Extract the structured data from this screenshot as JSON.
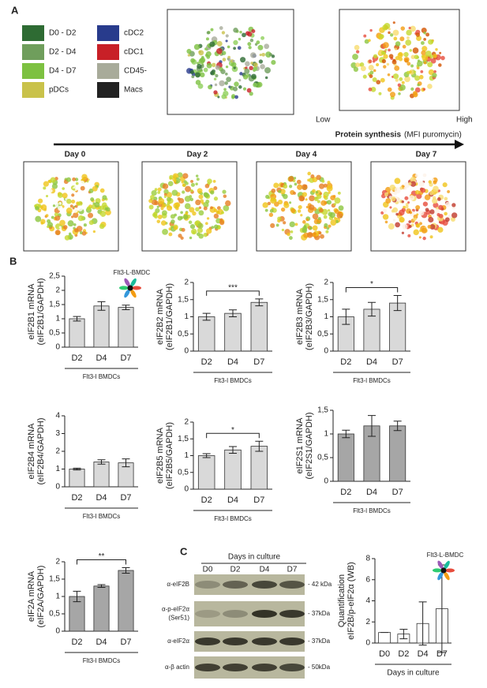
{
  "panel_a": {
    "letter": "A",
    "legend": [
      {
        "label": "D0 - D2",
        "color": "#2e6b33"
      },
      {
        "label": "D2 - D4",
        "color": "#6f9e5c"
      },
      {
        "label": "D4 - D7",
        "color": "#7dc141"
      },
      {
        "label": "pDCs",
        "color": "#c9c24a"
      },
      {
        "label": "cDC2",
        "color": "#283b8c"
      },
      {
        "label": "cDC1",
        "color": "#c82027"
      },
      {
        "label": "CD45-",
        "color": "#a8ab9a"
      },
      {
        "label": "Macs",
        "color": "#222222"
      }
    ],
    "scale_low": "Low",
    "scale_high": "High",
    "scale_title": "Protein synthesis",
    "scale_unit": "(MFI puromycin)",
    "days": [
      "Day 0",
      "Day 2",
      "Day 4",
      "Day 7"
    ]
  },
  "panel_b": {
    "letter": "B"
  },
  "panel_c": {
    "letter": "C",
    "header": "Days in culture",
    "lanes": [
      "D0",
      "D2",
      "D4",
      "D7"
    ],
    "rows": [
      {
        "antibody": [
          "α-eIF2B"
        ],
        "size": "- 42 kDa"
      },
      {
        "antibody": [
          "α-p-eIF2α",
          "(Ser51)"
        ],
        "size": "- 37kDa"
      },
      {
        "antibody": [
          "α-eIF2α"
        ],
        "size": "- 37kDa"
      },
      {
        "antibody": [
          "α-β actin"
        ],
        "size": "- 50kDa"
      }
    ]
  },
  "chart_data": [
    {
      "type": "bar",
      "ylabel": [
        "eIF2B1 mRNA",
        "(eIF2B1/GAPDH)"
      ],
      "xlabel": "Flt3-l BMDCs",
      "annotation": "Flt3-L-BMDC",
      "categories": [
        "D2",
        "D4",
        "D7"
      ],
      "values": [
        1,
        1.45,
        1.4
      ],
      "errors": [
        0.08,
        0.15,
        0.08
      ],
      "color": "#d9d9d9",
      "ylim": [
        0,
        2.5
      ],
      "yticks": [
        0,
        {
          "value": 0.5,
          "label": "0,5"
        },
        1,
        {
          "value": 1.5,
          "label": "1,5"
        },
        2,
        {
          "value": 2.5,
          "label": "2,5"
        }
      ]
    },
    {
      "type": "bar",
      "ylabel": [
        "eIF2B2 mRNA",
        "(eIF2B1/GAPDH)"
      ],
      "xlabel": "Flt3-l BMDCs",
      "significance": "***",
      "categories": [
        "D2",
        "D4",
        "D7"
      ],
      "values": [
        1,
        1.1,
        1.42
      ],
      "errors": [
        0.1,
        0.1,
        0.1
      ],
      "color": "#d9d9d9",
      "ylim": [
        0,
        2
      ],
      "yticks": [
        0,
        {
          "value": 0.5,
          "label": "0,5"
        },
        1,
        {
          "value": 1.5,
          "label": "1,5"
        },
        2
      ]
    },
    {
      "type": "bar",
      "ylabel": [
        "eIF2B3 mRNA",
        "(eIF2B3/GAPDH)"
      ],
      "xlabel": "Flt3-l BMDCs",
      "significance": "*",
      "categories": [
        "D2",
        "D4",
        "D7"
      ],
      "values": [
        1,
        1.22,
        1.4
      ],
      "errors": [
        0.22,
        0.2,
        0.22
      ],
      "color": "#d9d9d9",
      "ylim": [
        0,
        2
      ],
      "yticks": [
        0,
        {
          "value": 0.5,
          "label": "0,5"
        },
        1,
        {
          "value": 1.5,
          "label": "1,5"
        },
        2
      ]
    },
    {
      "type": "bar",
      "ylabel": [
        "eIF2B4 mRNA",
        "(eIF2B4/GAPDH)"
      ],
      "xlabel": "Flt3-l BMDCs",
      "categories": [
        "D2",
        "D4",
        "D7"
      ],
      "values": [
        1,
        1.4,
        1.35
      ],
      "errors": [
        0.05,
        0.12,
        0.22
      ],
      "color": "#d9d9d9",
      "ylim": [
        0,
        4
      ],
      "yticks": [
        0,
        1,
        2,
        3,
        4
      ]
    },
    {
      "type": "bar",
      "ylabel": [
        "eIF2B5 mRNA",
        "(eIF2B5/GAPDH)"
      ],
      "xlabel": "Flt3-l BMDCs",
      "significance": "*",
      "categories": [
        "D2",
        "D4",
        "D7"
      ],
      "values": [
        1,
        1.17,
        1.28
      ],
      "errors": [
        0.06,
        0.1,
        0.15
      ],
      "color": "#d9d9d9",
      "ylim": [
        0,
        2
      ],
      "yticks": [
        0,
        {
          "value": 0.5,
          "label": "0,5"
        },
        1,
        {
          "value": 1.5,
          "label": "1,5"
        },
        2
      ]
    },
    {
      "type": "bar",
      "ylabel": [
        "eIF2S1 mRNA",
        "(eIF2S1/GAPDH)"
      ],
      "xlabel": "Flt3-l BMDCs",
      "categories": [
        "D2",
        "D4",
        "D7"
      ],
      "values": [
        1,
        1.17,
        1.17
      ],
      "errors": [
        0.08,
        0.22,
        0.1
      ],
      "color": "#a6a6a6",
      "ylim": [
        0,
        1.5
      ],
      "yticks": [
        0,
        {
          "value": 0.5,
          "label": "0,5"
        },
        1,
        {
          "value": 1.5,
          "label": "1,5"
        }
      ]
    },
    {
      "type": "bar",
      "ylabel": [
        "eIF2A mRNA",
        "(eIF2A/GAPDH)"
      ],
      "xlabel": "Flt3-l BMDCs",
      "significance": "**",
      "categories": [
        "D2",
        "D4",
        "D7"
      ],
      "values": [
        1,
        1.3,
        1.75
      ],
      "errors": [
        0.15,
        0.04,
        0.08
      ],
      "color": "#a6a6a6",
      "ylim": [
        0,
        2
      ],
      "yticks": [
        0,
        {
          "value": 0.5,
          "label": "0,5"
        },
        1,
        {
          "value": 1.5,
          "label": "1,5"
        },
        2
      ]
    },
    {
      "type": "bar",
      "ylabel": [
        "Quantification",
        "eIF2B/p-eIF2α (WB)"
      ],
      "xlabel": "Days in culture",
      "annotation": "Flt3-L-BMDC",
      "categories": [
        "D0",
        "D2",
        "D4",
        "D7"
      ],
      "values": [
        1,
        0.85,
        1.85,
        3.25
      ],
      "errors": [
        0,
        0.45,
        2.05,
        4.15
      ],
      "color": "#ffffff",
      "ylim": [
        0,
        8
      ],
      "yticks": [
        0,
        2,
        4,
        6,
        8
      ]
    }
  ]
}
